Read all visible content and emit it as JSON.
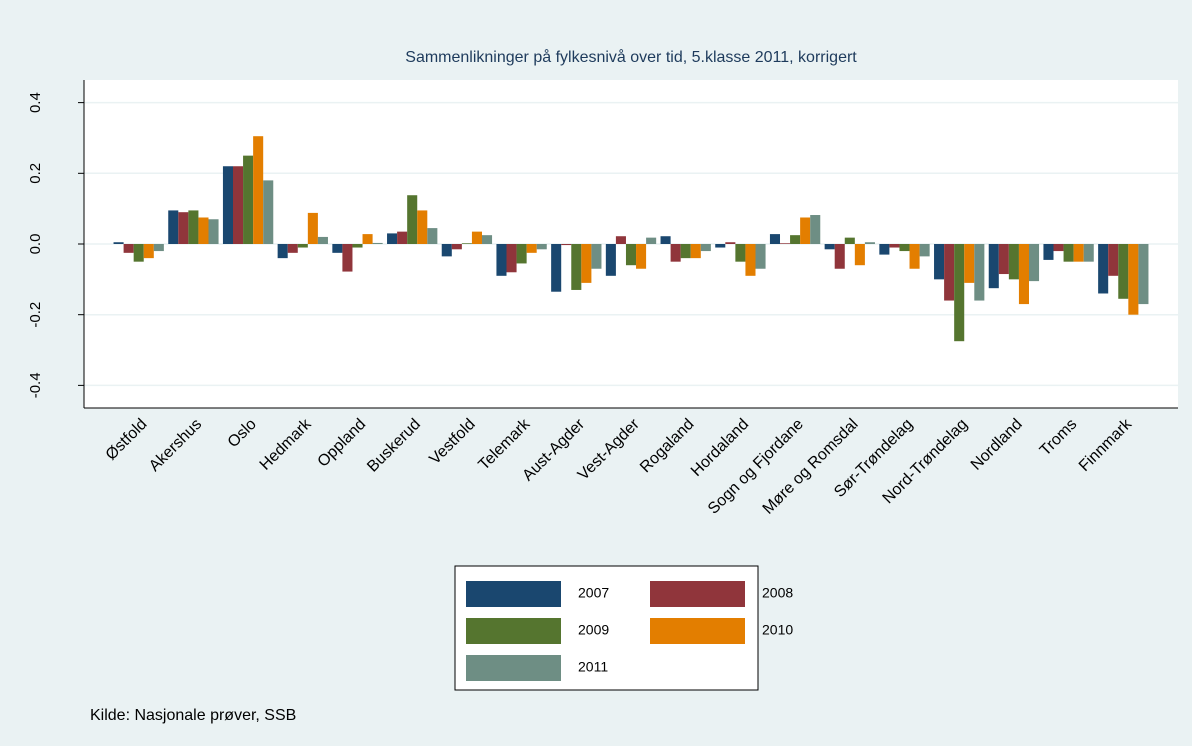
{
  "chart_data": {
    "type": "bar",
    "title": "Sammenlikninger på fylkesnivå over tid, 5.klasse 2011, korrigert",
    "categories": [
      "Østfold",
      "Akershus",
      "Oslo",
      "Hedmark",
      "Oppland",
      "Buskerud",
      "Vestfold",
      "Telemark",
      "Aust-Agder",
      "Vest-Agder",
      "Rogaland",
      "Hordaland",
      "Sogn og Fjordane",
      "Møre og Romsdal",
      "Sør-Trøndelag",
      "Nord-Trøndelag",
      "Nordland",
      "Troms",
      "Finnmark"
    ],
    "series": [
      {
        "name": "2007",
        "color": "#1a476f",
        "values": [
          0.005,
          0.095,
          0.22,
          -0.04,
          -0.025,
          0.03,
          -0.035,
          -0.09,
          -0.135,
          -0.09,
          0.022,
          -0.01,
          0.028,
          -0.015,
          -0.03,
          -0.1,
          -0.125,
          -0.045,
          -0.14
        ]
      },
      {
        "name": "2008",
        "color": "#90353b",
        "values": [
          -0.025,
          0.09,
          0.22,
          -0.025,
          -0.078,
          0.035,
          -0.015,
          -0.08,
          -0.003,
          0.022,
          -0.05,
          0.005,
          0.002,
          -0.07,
          -0.01,
          -0.16,
          -0.085,
          -0.02,
          -0.09
        ]
      },
      {
        "name": "2009",
        "color": "#55752f",
        "values": [
          -0.05,
          0.095,
          0.25,
          -0.01,
          -0.01,
          0.138,
          0.002,
          -0.055,
          -0.13,
          -0.06,
          -0.04,
          -0.05,
          0.025,
          0.018,
          -0.02,
          -0.275,
          -0.1,
          -0.05,
          -0.155
        ]
      },
      {
        "name": "2010",
        "color": "#e37e00",
        "values": [
          -0.04,
          0.075,
          0.305,
          0.088,
          0.028,
          0.095,
          0.035,
          -0.025,
          -0.11,
          -0.07,
          -0.04,
          -0.09,
          0.075,
          -0.06,
          -0.07,
          -0.11,
          -0.17,
          -0.05,
          -0.2
        ]
      },
      {
        "name": "2011",
        "color": "#6e8e84",
        "values": [
          -0.02,
          0.07,
          0.18,
          0.02,
          0.003,
          0.045,
          0.025,
          -0.015,
          -0.07,
          0.018,
          -0.02,
          -0.07,
          0.082,
          0.005,
          -0.035,
          -0.16,
          -0.105,
          -0.05,
          -0.17
        ]
      }
    ],
    "ylim": [
      -0.464,
      0.464
    ],
    "yticks": [
      -0.4,
      -0.2,
      {
        "value": 0,
        "label": "0.0"
      },
      0.2,
      0.4
    ],
    "grid": true,
    "source": "Kilde: Nasjonale prøver, SSB"
  }
}
